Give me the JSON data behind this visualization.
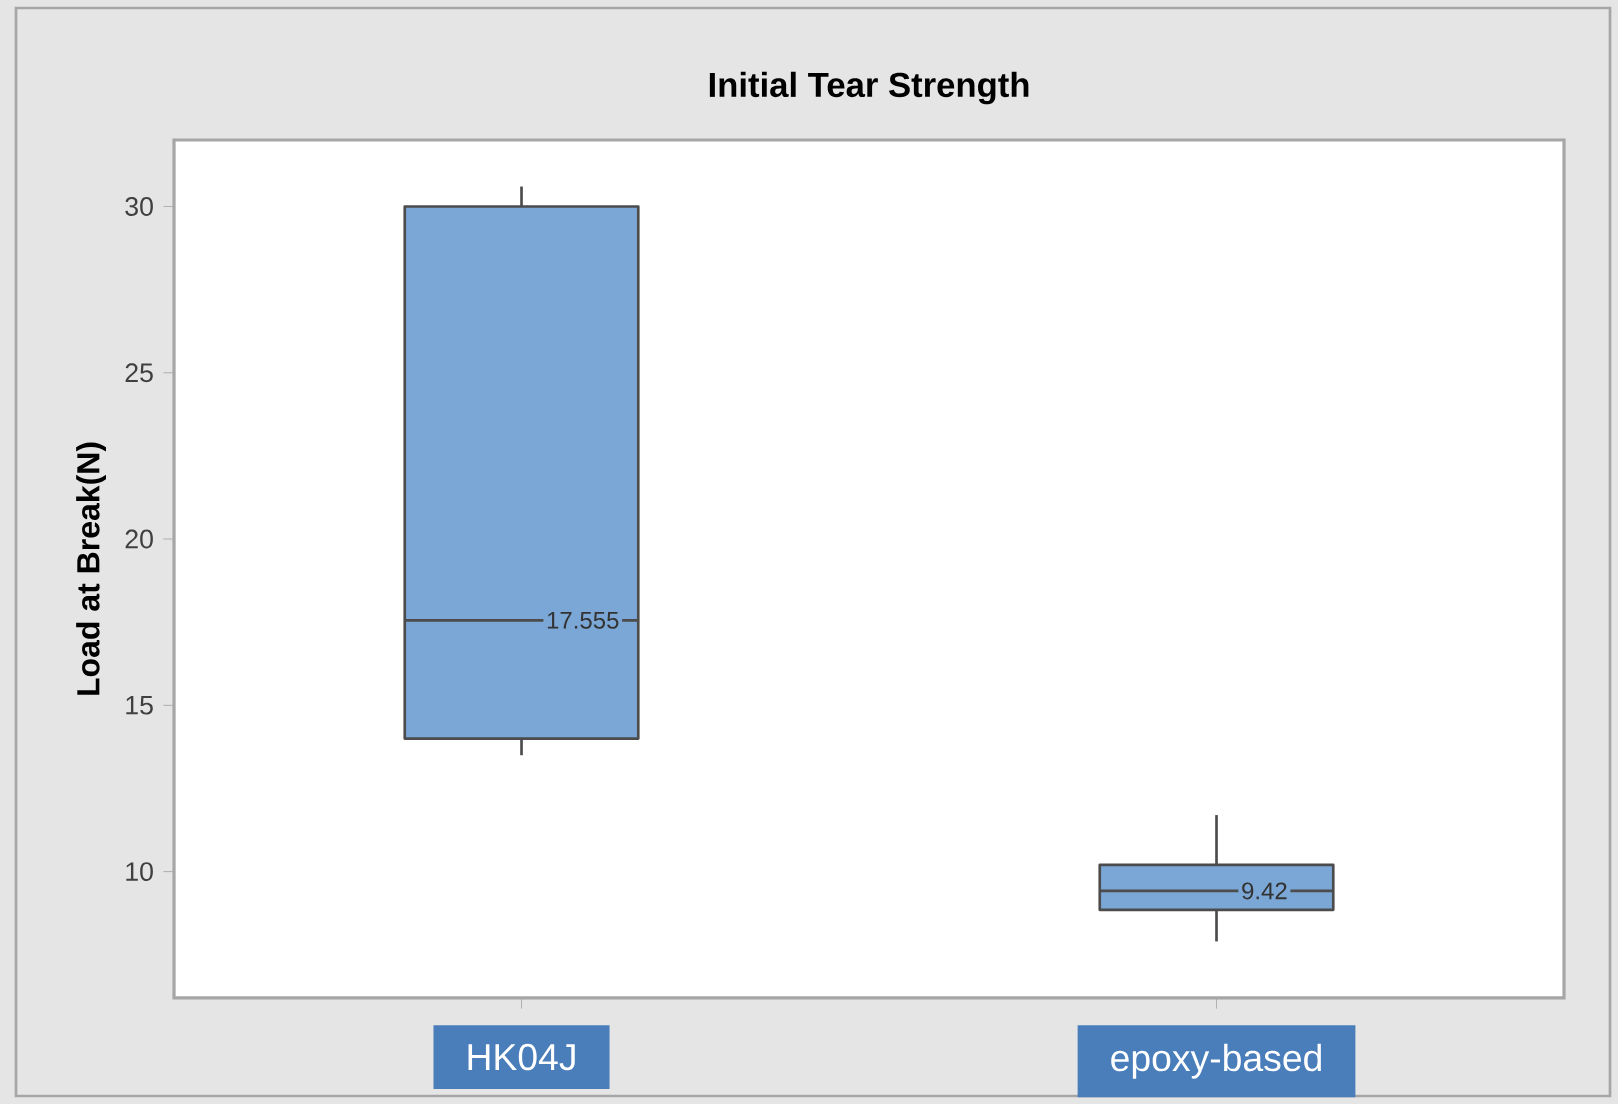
{
  "chart_data": {
    "type": "box",
    "title": "Initial Tear Strength",
    "ylabel": "Load at Break(N)",
    "categories": [
      "HK04J",
      "epoxy-based"
    ],
    "boxes": [
      {
        "low": 13.5,
        "q1": 14.0,
        "median": 17.555,
        "q3": 30.0,
        "high": 30.6
      },
      {
        "low": 7.9,
        "q1": 8.85,
        "median": 9.42,
        "q3": 10.2,
        "high": 11.7
      }
    ],
    "color": "#7ba7d7",
    "ylim": [
      6.2,
      32
    ],
    "yticks": [
      10,
      15,
      20,
      25,
      30
    ],
    "annotations": [
      "17.555",
      "9.42"
    ],
    "grid": false
  }
}
